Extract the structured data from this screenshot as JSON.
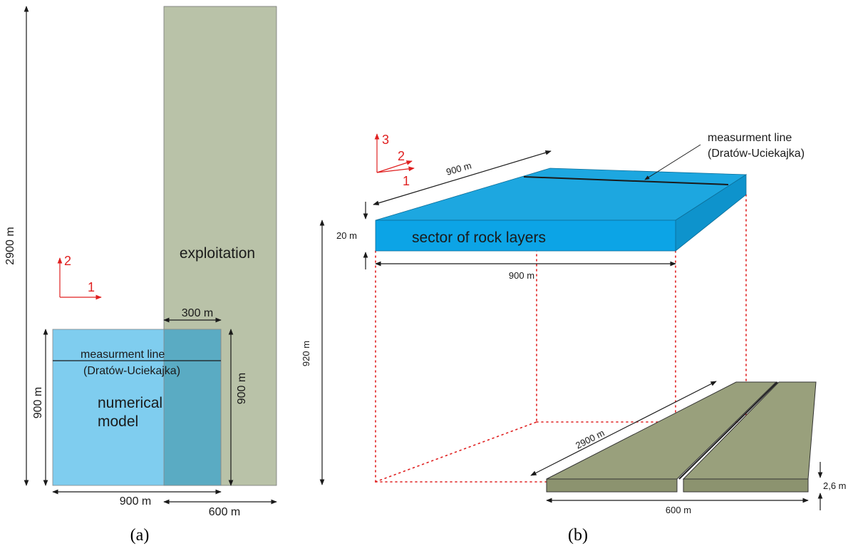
{
  "panel_a": {
    "caption": "(a)",
    "total_height_label": "2900 m",
    "exploitation_label": "exploitation",
    "overlap_width_label": "300 m",
    "line_label_1": "measurment line",
    "line_label_2": "(Dratów-Uciekajka)",
    "model_label_1": "numerical",
    "model_label_2": "model",
    "model_height_left_label": "900 m",
    "model_height_right_label": "900 m",
    "model_width_label": "900 m",
    "exploitation_width_label": "600 m",
    "axis_1": "1",
    "axis_2": "2"
  },
  "panel_b": {
    "caption": "(b)",
    "axis_1": "1",
    "axis_2": "2",
    "axis_3": "3",
    "top_depth_label": "900 m",
    "line_label_1": "measurment line",
    "line_label_2": "(Dratów-Uciekajka)",
    "thickness_label": "20 m",
    "sector_label": "sector of rock layers",
    "sector_width_label": "900 m",
    "depth_label": "920 m",
    "seam_length_label": "2900 m",
    "seam_thickness_label": "2,6 m",
    "seam_width_label": "600 m"
  },
  "colors": {
    "exploitation": "#b9c2a8",
    "model": "#7fcdef",
    "overlap": "#5aabc3",
    "sector_top": "#1da7e0",
    "sector_front": "#0ca4e6",
    "seam_top": "#99a07c",
    "seam_front": "#8c936f",
    "axis_red": "#e02020"
  }
}
